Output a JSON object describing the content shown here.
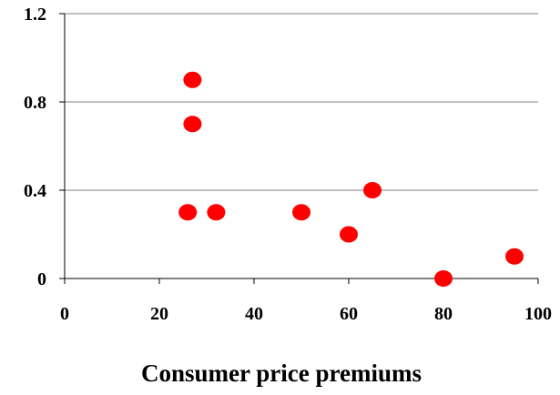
{
  "chart_data": {
    "type": "scatter",
    "title": "",
    "xlabel": "Consumer price premiums",
    "ylabel": "",
    "xlim": [
      0,
      100
    ],
    "ylim": [
      0,
      1.2
    ],
    "x_ticks": [
      "0",
      "20",
      "40",
      "60",
      "80",
      "100"
    ],
    "y_ticks": [
      "0",
      "0.4",
      "0.8",
      "1.2"
    ],
    "x_tick_values": [
      0,
      20,
      40,
      60,
      80,
      100
    ],
    "y_tick_values": [
      0,
      0.4,
      0.8,
      1.2
    ],
    "grid": "horizontal",
    "legend": "none",
    "marker_color": "#ff0000",
    "series": [
      {
        "points": [
          {
            "x": 27,
            "y": 0.9
          },
          {
            "x": 27,
            "y": 0.7
          },
          {
            "x": 26,
            "y": 0.3
          },
          {
            "x": 32,
            "y": 0.3
          },
          {
            "x": 50,
            "y": 0.3
          },
          {
            "x": 60,
            "y": 0.2
          },
          {
            "x": 65,
            "y": 0.4
          },
          {
            "x": 80,
            "y": 0.0
          },
          {
            "x": 95,
            "y": 0.1
          }
        ]
      }
    ]
  }
}
